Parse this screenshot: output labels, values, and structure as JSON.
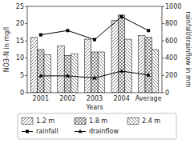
{
  "chart_data": {
    "type": "bar",
    "categories": [
      "2001",
      "2002",
      "2003",
      "2004",
      "Average"
    ],
    "xlabel": "Years",
    "ylabel": "NO3-N in mg/l",
    "y2label": "rainfall/drainflow in mm",
    "ylim": [
      0,
      25
    ],
    "yticks": [
      0,
      5,
      10,
      15,
      20,
      25
    ],
    "y2lim": [
      0,
      1000
    ],
    "y2ticks": [
      0,
      200,
      400,
      600,
      800,
      1000
    ],
    "grid": false,
    "legend": "bottom",
    "series": [
      {
        "name": "1.2 m",
        "type": "bar",
        "color": "white",
        "values": [
          16.0,
          13.5,
          15.5,
          21.0,
          16.5
        ]
      },
      {
        "name": "1.8 m",
        "type": "bar",
        "color": "white",
        "values": [
          12.5,
          10.8,
          11.8,
          22.5,
          16.0
        ]
      },
      {
        "name": "2.4 m",
        "type": "bar",
        "color": "white",
        "values": [
          11.0,
          11.2,
          11.8,
          15.5,
          12.5
        ]
      },
      {
        "name": "rainfall",
        "type": "line",
        "axis": "y2",
        "color": "black",
        "marker": "square",
        "values": [
          670,
          720,
          615,
          880,
          720
        ]
      },
      {
        "name": "drainflow",
        "type": "line",
        "axis": "y2",
        "color": "black",
        "marker": "triangle",
        "values": [
          195,
          195,
          170,
          250,
          205
        ]
      }
    ]
  }
}
